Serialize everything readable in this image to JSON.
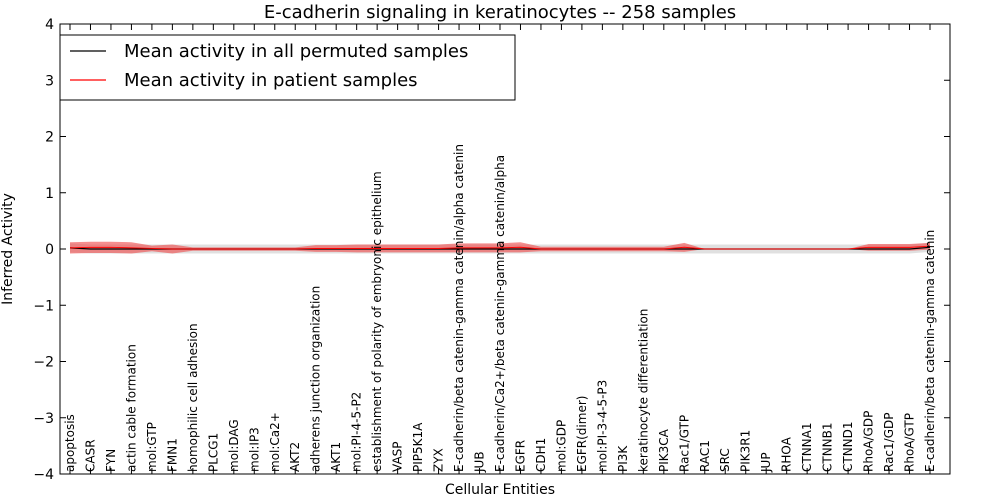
{
  "chart_data": {
    "type": "line",
    "title": "E-cadherin signaling in keratinocytes -- 258 samples",
    "xlabel": "Cellular Entities",
    "ylabel": "Inferred Activity",
    "ylim": [
      -4,
      4
    ],
    "yticks": [
      "−4",
      "−3",
      "−2",
      "−1",
      "0",
      "1",
      "2",
      "3",
      "4"
    ],
    "grid": false,
    "legend_position": "top-left",
    "categories": [
      "apoptosis",
      "CASR",
      "FYN",
      "actin cable formation",
      "mol:GTP",
      "FMN1",
      "homophilic cell adhesion",
      "PLCG1",
      "mol:DAG",
      "mol:IP3",
      "mol:Ca2+",
      "AKT2",
      "adherens junction organization",
      "AKT1",
      "mol:PI-4-5-P2",
      "establishment of polarity of embryonic epithelium",
      "VASP",
      "PIP5K1A",
      "ZYX",
      "E-cadherin/beta catenin-gamma catenin/alpha catenin",
      "JUB",
      "E-cadherin/Ca2+/beta catenin-gamma catenin/alpha",
      "EGFR",
      "CDH1",
      "mol:GDP",
      "EGFR(dimer)",
      "mol:PI-3-4-5-P3",
      "PI3K",
      "keratinocyte differentiation",
      "PIK3CA",
      "Rac1/GTP",
      "RAC1",
      "SRC",
      "PIK3R1",
      "JUP",
      "RHOA",
      "CTNNA1",
      "CTNNB1",
      "CTNND1",
      "RhoA/GDP",
      "Rac1/GDP",
      "RhoA/GTP",
      "E-cadherin/beta catenin-gamma catenin"
    ],
    "series": [
      {
        "name": "Mean activity in all permuted samples",
        "color": "#000000",
        "values": [
          0.02,
          0.0,
          0.0,
          0.0,
          0.0,
          0.0,
          0.0,
          0.0,
          0.0,
          0.0,
          0.0,
          0.0,
          0.0,
          0.0,
          0.0,
          0.0,
          0.0,
          0.0,
          0.0,
          0.0,
          0.0,
          0.0,
          0.0,
          0.0,
          0.0,
          0.0,
          0.0,
          0.0,
          0.0,
          0.0,
          0.0,
          0.0,
          0.0,
          0.0,
          0.0,
          0.0,
          0.0,
          0.0,
          0.0,
          0.0,
          0.0,
          0.0,
          0.03
        ],
        "band": 0.08,
        "band_color": "#bbbbbb"
      },
      {
        "name": "Mean activity in patient samples",
        "color": "#ff0000",
        "values": [
          0.02,
          0.03,
          0.03,
          0.02,
          0.01,
          0.0,
          0.0,
          0.0,
          0.0,
          0.0,
          0.0,
          0.0,
          0.01,
          0.01,
          0.01,
          0.01,
          0.01,
          0.01,
          0.01,
          0.02,
          0.02,
          0.02,
          0.03,
          0.0,
          0.0,
          0.0,
          0.0,
          0.0,
          0.0,
          0.0,
          0.03,
          0.0,
          0.0,
          0.0,
          0.0,
          0.0,
          0.0,
          0.0,
          0.0,
          0.03,
          0.03,
          0.03,
          0.05
        ],
        "band": [
          0.1,
          0.1,
          0.1,
          0.1,
          0.05,
          0.08,
          0.03,
          0.03,
          0.03,
          0.03,
          0.03,
          0.03,
          0.06,
          0.06,
          0.07,
          0.07,
          0.07,
          0.07,
          0.07,
          0.08,
          0.08,
          0.08,
          0.09,
          0.04,
          0.04,
          0.04,
          0.04,
          0.04,
          0.04,
          0.04,
          0.08,
          0.0,
          0.0,
          0.0,
          0.0,
          0.0,
          0.0,
          0.0,
          0.0,
          0.06,
          0.06,
          0.06,
          0.06
        ],
        "band_color": "#ee4444"
      }
    ]
  }
}
